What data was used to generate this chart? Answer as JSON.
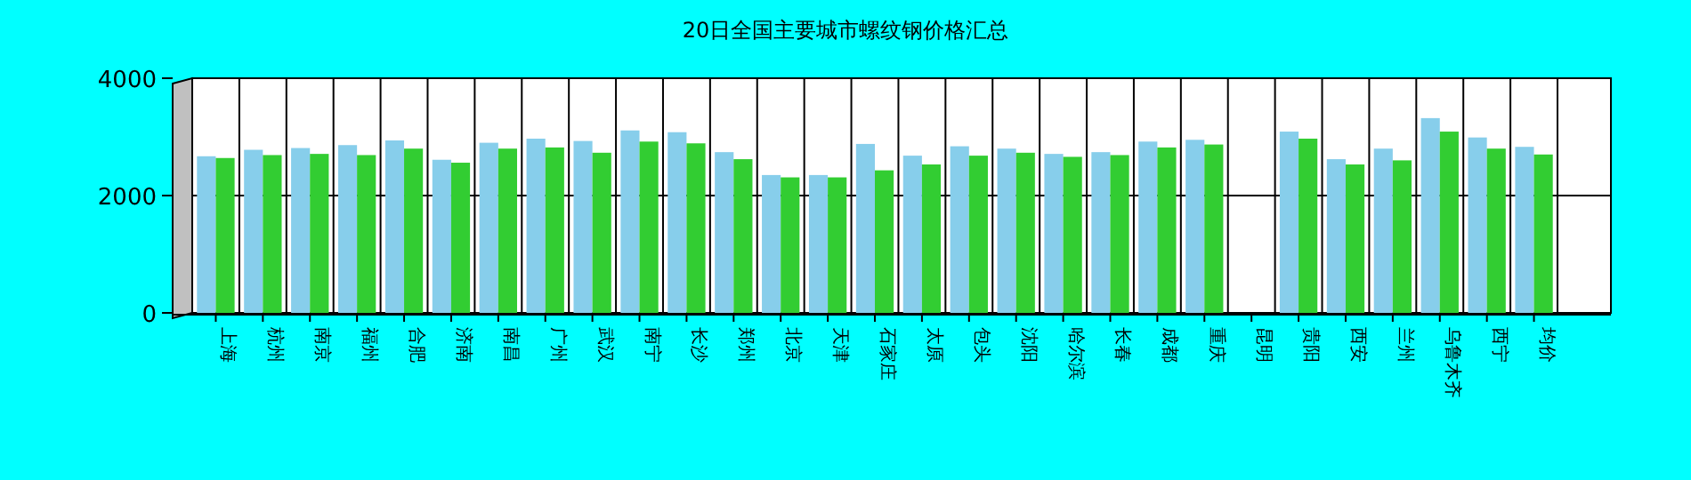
{
  "chart_data": {
    "type": "bar",
    "title": "20日全国主要城市螺纹钢价格汇总",
    "categories": [
      "上海",
      "杭州",
      "南京",
      "福州",
      "合肥",
      "济南",
      "南昌",
      "广州",
      "武汉",
      "南宁",
      "长沙",
      "郑州",
      "北京",
      "天津",
      "石家庄",
      "太原",
      "包头",
      "沈阳",
      "哈尔滨",
      "长春",
      "成都",
      "重庆",
      "昆明",
      "贵阳",
      "西安",
      "兰州",
      "乌鲁木齐",
      "西宁",
      "均价"
    ],
    "series": [
      {
        "color": "#87ceeb",
        "values": [
          2670,
          2780,
          2810,
          2860,
          2940,
          2610,
          2900,
          2970,
          2930,
          3110,
          3080,
          2740,
          2350,
          2350,
          2880,
          2680,
          2840,
          2800,
          2710,
          2740,
          2920,
          2950,
          0,
          3090,
          2620,
          2800,
          3320,
          2990,
          2830
        ]
      },
      {
        "color": "#32cd32",
        "values": [
          2640,
          2690,
          2710,
          2690,
          2800,
          2560,
          2800,
          2820,
          2730,
          2920,
          2890,
          2620,
          2310,
          2310,
          2430,
          2530,
          2680,
          2730,
          2660,
          2690,
          2820,
          2870,
          0,
          2970,
          2530,
          2600,
          3090,
          2800,
          2700
        ]
      }
    ],
    "ylim": [
      0,
      4000
    ],
    "yticks": [
      0,
      2000,
      4000
    ],
    "grid": true
  }
}
